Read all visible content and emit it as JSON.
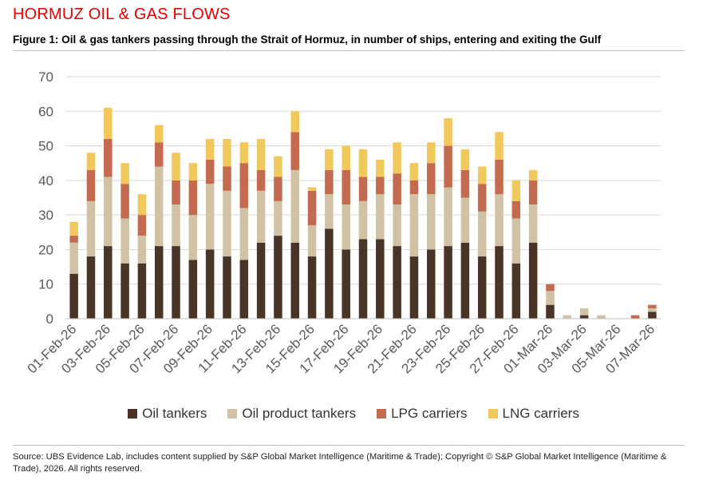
{
  "header": {
    "section_title": "HORMUZ OIL & GAS FLOWS"
  },
  "figure": {
    "title": "Figure 1: Oil & gas tankers passing through the Strait of Hormuz, in number of ships, entering and exiting the Gulf"
  },
  "source_note": "Source: UBS Evidence Lab, includes content supplied by S&P Global Market Intelligence (Maritime & Trade); Copyright © S&P Global Market Intelligence (Maritime & Trade), 2026. All rights reserved.",
  "colors": {
    "oil": "#4a3426",
    "product": "#d2c2a5",
    "lpg": "#c46a4f",
    "lng": "#f2c75c",
    "grid": "#d9d9d9",
    "axis_text": "#595959"
  },
  "chart_data": {
    "type": "bar",
    "stacked": true,
    "title": "",
    "xlabel": "",
    "ylabel": "",
    "ylim": [
      0,
      70
    ],
    "yticks": [
      0,
      10,
      20,
      30,
      40,
      50,
      60,
      70
    ],
    "grid": true,
    "legend_position": "bottom",
    "categories": [
      "01-Feb-26",
      "02-Feb-26",
      "03-Feb-26",
      "04-Feb-26",
      "05-Feb-26",
      "06-Feb-26",
      "07-Feb-26",
      "08-Feb-26",
      "09-Feb-26",
      "10-Feb-26",
      "11-Feb-26",
      "12-Feb-26",
      "13-Feb-26",
      "14-Feb-26",
      "15-Feb-26",
      "16-Feb-26",
      "17-Feb-26",
      "18-Feb-26",
      "19-Feb-26",
      "20-Feb-26",
      "21-Feb-26",
      "22-Feb-26",
      "23-Feb-26",
      "24-Feb-26",
      "25-Feb-26",
      "26-Feb-26",
      "27-Feb-26",
      "28-Feb-26",
      "01-Mar-26",
      "02-Mar-26",
      "03-Mar-26",
      "04-Mar-26",
      "05-Mar-26",
      "06-Mar-26",
      "07-Mar-26"
    ],
    "tick_labels": [
      "01-Feb-26",
      "03-Feb-26",
      "05-Feb-26",
      "07-Feb-26",
      "09-Feb-26",
      "11-Feb-26",
      "13-Feb-26",
      "15-Feb-26",
      "17-Feb-26",
      "19-Feb-26",
      "21-Feb-26",
      "23-Feb-26",
      "25-Feb-26",
      "27-Feb-26",
      "01-Mar-26",
      "03-Mar-26",
      "05-Mar-26",
      "07-Mar-26"
    ],
    "series": [
      {
        "name": "Oil tankers",
        "color_key": "oil",
        "values": [
          13,
          18,
          21,
          16,
          16,
          21,
          21,
          17,
          20,
          18,
          17,
          22,
          24,
          22,
          18,
          26,
          20,
          23,
          23,
          21,
          18,
          20,
          21,
          22,
          18,
          21,
          16,
          22,
          4,
          0,
          1,
          0,
          0,
          0,
          2
        ]
      },
      {
        "name": "Oil product tankers",
        "color_key": "product",
        "values": [
          9,
          16,
          20,
          13,
          8,
          23,
          12,
          13,
          19,
          19,
          15,
          15,
          10,
          21,
          9,
          10,
          13,
          11,
          13,
          12,
          18,
          16,
          17,
          13,
          13,
          15,
          13,
          11,
          4,
          1,
          2,
          1,
          0,
          0,
          1
        ]
      },
      {
        "name": "LPG carriers",
        "color_key": "lpg",
        "values": [
          2,
          9,
          11,
          10,
          6,
          7,
          7,
          10,
          7,
          7,
          13,
          6,
          7,
          11,
          10,
          7,
          10,
          7,
          5,
          9,
          4,
          9,
          12,
          8,
          8,
          10,
          5,
          7,
          2,
          0,
          0,
          0,
          0,
          1,
          1
        ]
      },
      {
        "name": "LNG carriers",
        "color_key": "lng",
        "values": [
          4,
          5,
          9,
          6,
          6,
          5,
          8,
          5,
          6,
          8,
          6,
          9,
          6,
          6,
          1,
          6,
          7,
          8,
          5,
          9,
          5,
          6,
          8,
          6,
          5,
          8,
          6,
          3,
          0,
          0,
          0,
          0,
          0,
          0,
          0
        ]
      }
    ]
  }
}
